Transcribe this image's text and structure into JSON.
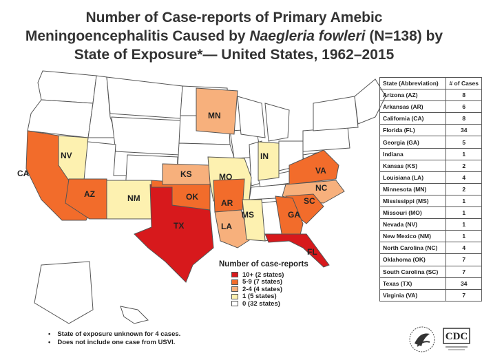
{
  "title": {
    "line1": "Number of Case-reports of Primary Amebic",
    "line2_pre": "Meningoencephalitis Caused by ",
    "line2_em": "Naegleria fowleri",
    "line2_post": " (N=138) by",
    "line3": "State of Exposure*— United States, 1962–2015"
  },
  "colors": {
    "10plus": "#d7191c",
    "5to9": "#f26c2b",
    "2to4": "#f7b07c",
    "1": "#fdf1b0",
    "0": "#ffffff"
  },
  "map_labels": {
    "CA": "CA",
    "NV": "NV",
    "AZ": "AZ",
    "NM": "NM",
    "TX": "TX",
    "OK": "OK",
    "KS": "KS",
    "MO": "MO",
    "AR": "AR",
    "LA": "LA",
    "MS": "MS",
    "MN": "MN",
    "IN": "IN",
    "VA": "VA",
    "NC": "NC",
    "SC": "SC",
    "GA": "GA",
    "FL": "FL"
  },
  "legend": {
    "title": "Number of case-reports",
    "items": [
      {
        "label": "10+ (2 states)",
        "key": "10plus"
      },
      {
        "label": "5-9 (7 states)",
        "key": "5to9"
      },
      {
        "label": "2-4 (4 states)",
        "key": "2to4"
      },
      {
        "label": "1 (5 states)",
        "key": "1"
      },
      {
        "label": "0 (32 states)",
        "key": "0"
      }
    ]
  },
  "table": {
    "header_state": "State (Abbreviation)",
    "header_cases": "# of Cases",
    "rows": [
      {
        "state": "Arizona (AZ)",
        "cases": "8"
      },
      {
        "state": "Arkansas (AR)",
        "cases": "6"
      },
      {
        "state": "California (CA)",
        "cases": "8"
      },
      {
        "state": "Florida (FL)",
        "cases": "34"
      },
      {
        "state": "Georgia (GA)",
        "cases": "5"
      },
      {
        "state": "Indiana",
        "cases": "1"
      },
      {
        "state": "Kansas (KS)",
        "cases": "2"
      },
      {
        "state": "Louisiana (LA)",
        "cases": "4"
      },
      {
        "state": "Minnesota (MN)",
        "cases": "2"
      },
      {
        "state": "Mississippi (MS)",
        "cases": "1"
      },
      {
        "state": "Missouri (MO)",
        "cases": "1"
      },
      {
        "state": "Nevada (NV)",
        "cases": "1"
      },
      {
        "state": "New Mexico (NM)",
        "cases": "1"
      },
      {
        "state": "North Carolina (NC)",
        "cases": "4"
      },
      {
        "state": "Oklahoma (OK)",
        "cases": "7"
      },
      {
        "state": "South Carolina (SC)",
        "cases": "7"
      },
      {
        "state": "Texas (TX)",
        "cases": "34"
      },
      {
        "state": "Virginia (VA)",
        "cases": "7"
      }
    ]
  },
  "notes": [
    "State of exposure unknown for 4 cases.",
    "Does not include one case from USVI."
  ],
  "logos": {
    "cdc": "CDC"
  }
}
